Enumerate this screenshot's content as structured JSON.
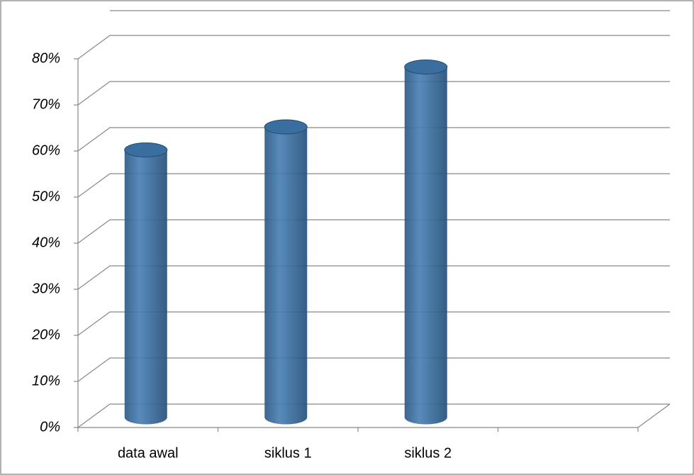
{
  "chart_data": {
    "type": "bar3d",
    "categories": [
      "data awal",
      "siklus 1",
      "siklus 2",
      null
    ],
    "values": [
      58,
      63,
      76,
      null
    ],
    "color": "#3a6e9e",
    "ylim": [
      0,
      80
    ],
    "yticks": [
      {
        "value": 0,
        "label": "0%"
      },
      {
        "value": 10,
        "label": "10%"
      },
      {
        "value": 20,
        "label": "20%"
      },
      {
        "value": 30,
        "label": "30%"
      },
      {
        "value": 40,
        "label": "40%"
      },
      {
        "value": 50,
        "label": "50%"
      },
      {
        "value": 60,
        "label": "60%"
      },
      {
        "value": 70,
        "label": "70%"
      },
      {
        "value": 80,
        "label": "80%"
      }
    ],
    "grid": true
  }
}
